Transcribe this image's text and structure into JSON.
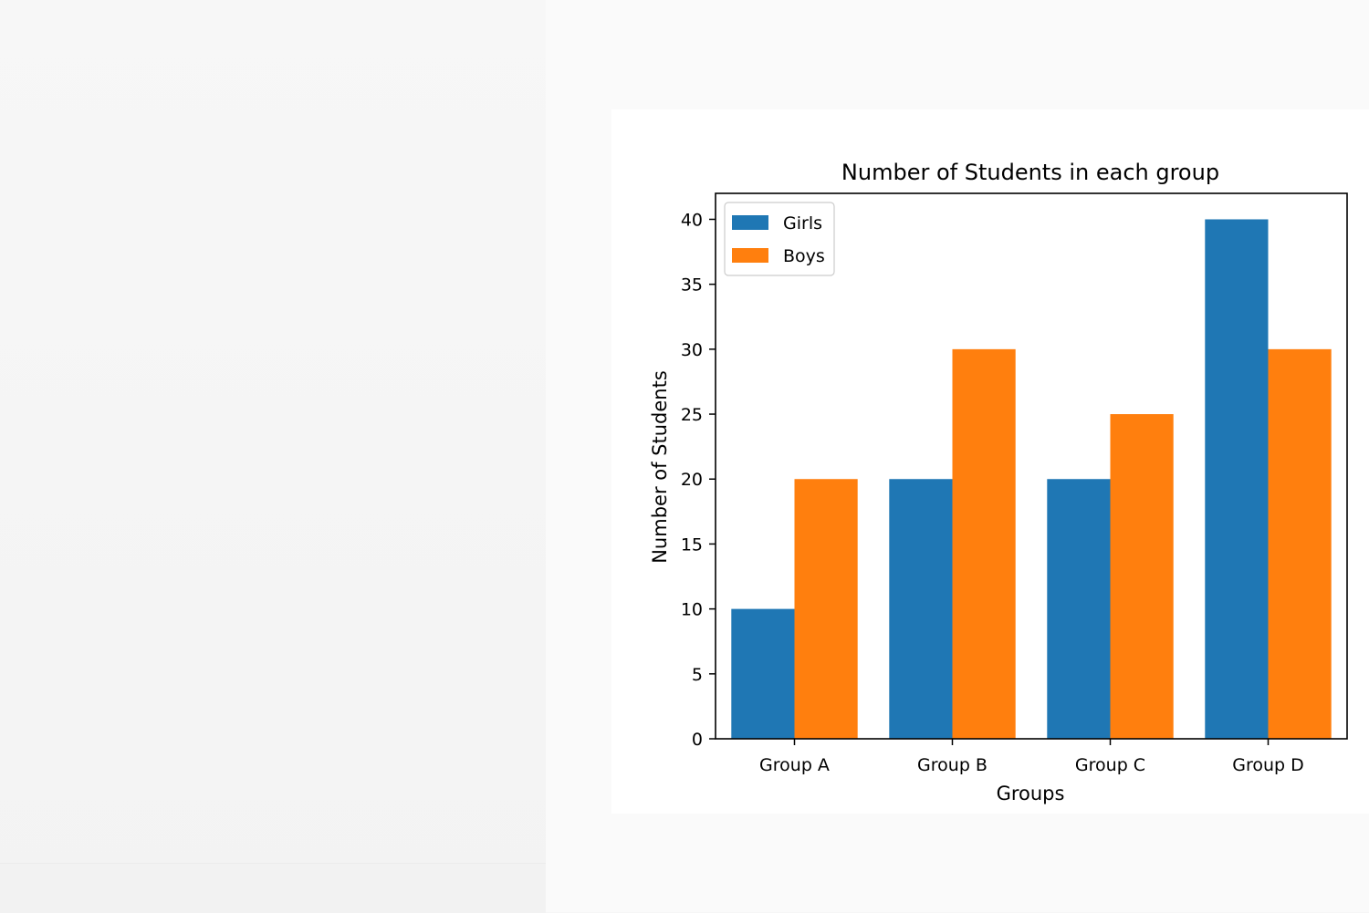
{
  "chart_data": {
    "type": "bar",
    "title": "Number of Students in each group",
    "xlabel": "Groups",
    "ylabel": "Number of Students",
    "categories": [
      "Group A",
      "Group B",
      "Group C",
      "Group D"
    ],
    "series": [
      {
        "name": "Girls",
        "values": [
          10,
          20,
          20,
          40
        ],
        "color": "#1f77b4"
      },
      {
        "name": "Boys",
        "values": [
          20,
          30,
          25,
          30
        ],
        "color": "#ff7f0e"
      }
    ],
    "ylim": [
      0,
      42
    ],
    "yticks": [
      0,
      5,
      10,
      15,
      20,
      25,
      30,
      35,
      40
    ],
    "grid": false,
    "legend_position": "upper-left"
  }
}
